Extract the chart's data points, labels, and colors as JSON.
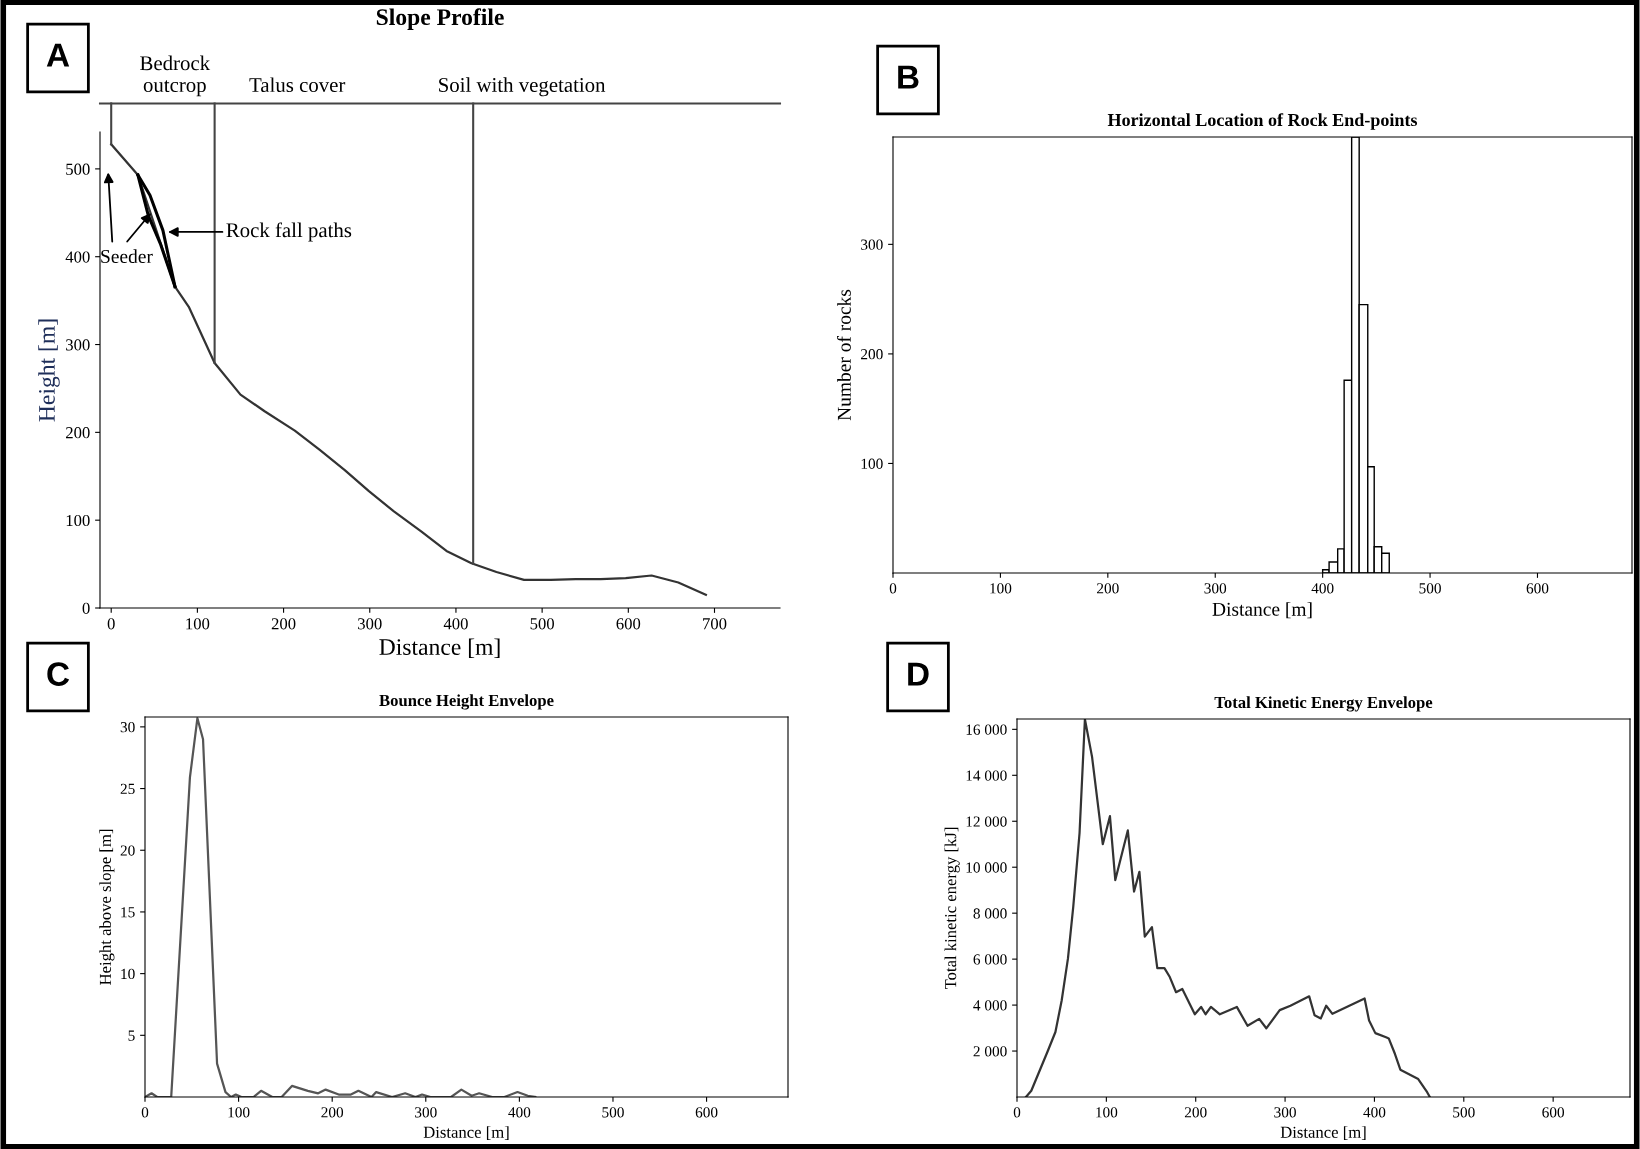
{
  "chart_data": [
    {
      "type": "line",
      "title": "Slope Profile",
      "xlabel": "Distance [m]",
      "ylabel": "Height [m]",
      "series": [
        {
          "color": "#333333",
          "x": [
            0,
            31,
            74,
            90,
            120,
            150,
            178,
            213,
            242,
            271,
            299,
            328,
            360,
            389,
            418,
            447,
            479,
            510,
            539,
            568,
            597,
            627,
            658,
            690
          ],
          "values": [
            528,
            493,
            366,
            343,
            279,
            243,
            224,
            202,
            180,
            157,
            133,
            110,
            87,
            65,
            51,
            41,
            32,
            32,
            33,
            33,
            34,
            37,
            29,
            15
          ]
        },
        {
          "color": "#000000",
          "x": [
            31,
            45,
            60,
            74
          ],
          "values": [
            493,
            470,
            430,
            366
          ]
        },
        {
          "color": "#000000",
          "x": [
            31,
            43,
            57,
            74
          ],
          "values": [
            493,
            447,
            415,
            366
          ]
        }
      ],
      "xlim": [
        -13,
        776
      ],
      "ylim": [
        0,
        542
      ],
      "xticks": [
        0,
        100,
        200,
        300,
        400,
        500,
        600,
        700
      ],
      "yticks": [
        0,
        100,
        200,
        300,
        400,
        500
      ],
      "ref_lines": [
        {
          "axis": "x",
          "value": 120,
          "color": "#444444"
        },
        {
          "axis": "x",
          "value": 420,
          "color": "#444444"
        }
      ],
      "annotations": [
        "A",
        "Bedrock\noutcrop",
        "Talus cover",
        "Soil with vegetation",
        "Rock fall paths",
        "Seeder"
      ]
    },
    {
      "type": "histogram",
      "title": "Horizontal Location of Rock End-points",
      "xlabel": "Distance [m]",
      "ylabel": "Number of rocks",
      "color": "#ffffff",
      "bins": [
        400,
        406,
        414,
        420,
        427,
        434,
        442,
        448,
        455,
        462
      ],
      "values": [
        3,
        10,
        22,
        176,
        398,
        245,
        97,
        24,
        18
      ],
      "xlim": [
        0,
        688
      ],
      "ylim": [
        0,
        398
      ],
      "xticks": [
        0,
        100,
        200,
        300,
        400,
        500,
        600
      ],
      "yticks": [
        100,
        200,
        300
      ],
      "annotations": [
        "B"
      ]
    },
    {
      "type": "line",
      "title": "Bounce Height Envelope",
      "xlabel": "Distance [m]",
      "ylabel": "Height above slope [m]",
      "color": "#555555",
      "x": [
        0,
        7,
        13,
        28,
        48,
        56,
        62,
        77,
        86,
        92,
        97,
        103,
        116,
        124,
        136,
        146,
        157,
        174,
        185,
        193,
        207,
        220,
        228,
        242,
        247,
        264,
        278,
        289,
        296,
        305,
        327,
        338,
        349,
        357,
        371,
        384,
        398,
        409,
        417
      ],
      "values": [
        0,
        0.3,
        0,
        0,
        25.9,
        30.7,
        29,
        2.7,
        0.4,
        0,
        0.2,
        0,
        0,
        0.5,
        0,
        0,
        0.9,
        0.5,
        0.3,
        0.6,
        0.2,
        0.2,
        0.5,
        0,
        0.4,
        0,
        0.3,
        0,
        0.2,
        0,
        0,
        0.6,
        0.1,
        0.3,
        0,
        0,
        0.4,
        0.1,
        0
      ],
      "xlim": [
        0,
        687
      ],
      "ylim": [
        0,
        30.8
      ],
      "xticks": [
        0,
        100,
        200,
        300,
        400,
        500,
        600
      ],
      "yticks": [
        5,
        10,
        15,
        20,
        25,
        30
      ],
      "annotations": [
        "C"
      ]
    },
    {
      "type": "line",
      "title": "Total Kinetic Energy Envelope",
      "xlabel": "Distance [m]",
      "ylabel": "Total kinetic energy [kJ]",
      "color": "#333333",
      "x": [
        10,
        16,
        34,
        43,
        50,
        57,
        63,
        70,
        76,
        84,
        96,
        104,
        110,
        124,
        131,
        137,
        143,
        151,
        157,
        165,
        171,
        178,
        185,
        199,
        206,
        211,
        217,
        227,
        246,
        258,
        271,
        279,
        294,
        306,
        327,
        333,
        340,
        346,
        353,
        389,
        394,
        401,
        413,
        416,
        423,
        429,
        449,
        459,
        462
      ],
      "values": [
        0,
        270,
        1960,
        2830,
        4200,
        6020,
        8300,
        11490,
        16440,
        14800,
        11000,
        12220,
        9440,
        11600,
        8940,
        9800,
        6980,
        7390,
        5610,
        5610,
        5220,
        4560,
        4700,
        3600,
        3920,
        3600,
        3920,
        3600,
        3920,
        3100,
        3400,
        2990,
        3780,
        3970,
        4380,
        3560,
        3420,
        3970,
        3620,
        4290,
        3330,
        2780,
        2600,
        2550,
        1870,
        1190,
        780,
        210,
        0
      ],
      "xlim": [
        0,
        686
      ],
      "ylim": [
        0,
        16450
      ],
      "xticks": [
        0,
        100,
        200,
        300,
        400,
        500,
        600
      ],
      "yticks": [
        {
          "value": 2000,
          "label": "2 000"
        },
        {
          "value": 4000,
          "label": "4 000"
        },
        {
          "value": 6000,
          "label": "6 000"
        },
        {
          "value": 8000,
          "label": "8 000"
        },
        {
          "value": 10000,
          "label": "10 000"
        },
        {
          "value": 12000,
          "label": "12 000"
        },
        {
          "value": 14000,
          "label": "14 000"
        },
        {
          "value": 16000,
          "label": "16 000"
        }
      ],
      "annotations": [
        "D"
      ]
    }
  ]
}
